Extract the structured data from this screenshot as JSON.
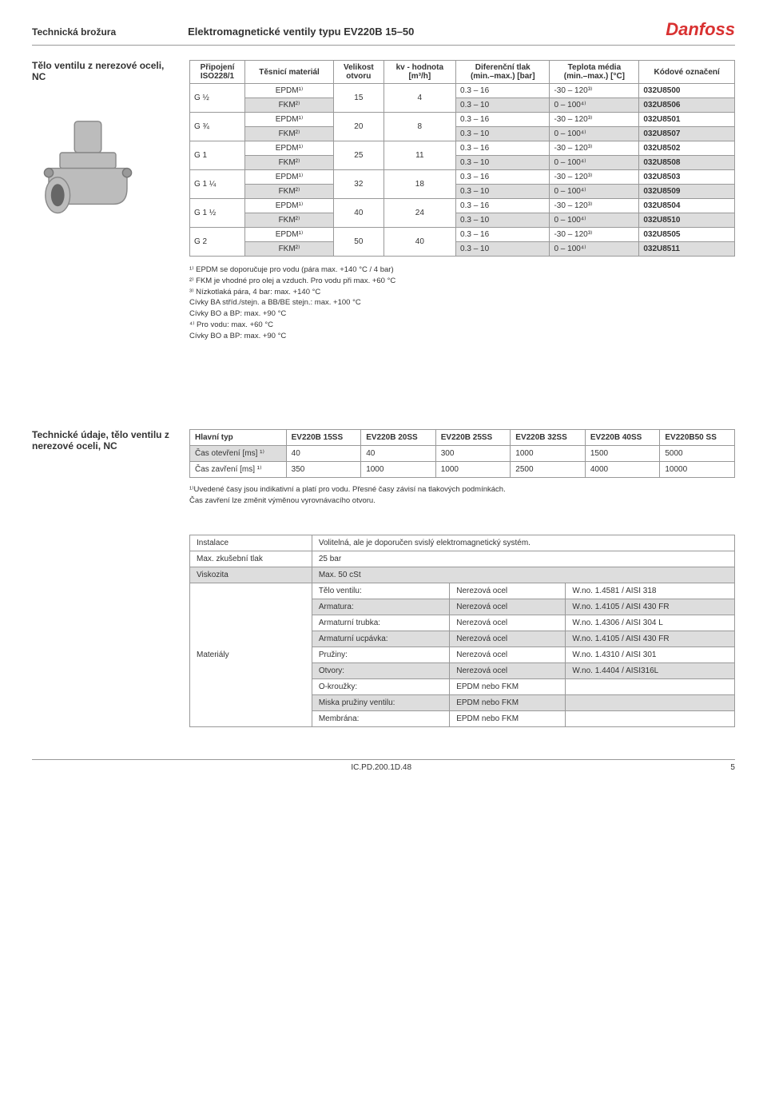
{
  "header": {
    "left": "Technická brožura",
    "center": "Elektromagnetické ventily typu EV220B 15–50",
    "logo": "Danfoss"
  },
  "section1": {
    "title": "Tělo ventilu z nerezové oceli, NC",
    "columns": {
      "c1": "Připojení\nISO228/1",
      "c2": "Těsnicí materiál",
      "c3": "Velikost\notvoru",
      "c4": "kv - hodnota\n[m³/h]",
      "c5": "Diferenční tlak\n(min.–max.) [bar]",
      "c6": "Teplota média\n(min.–max.) [°C]",
      "c7": "Kódové označení"
    },
    "rows": [
      {
        "conn": "G ½",
        "seal_e": "EPDM¹⁾",
        "seal_f": "FKM²⁾",
        "size": "15",
        "kv": "4",
        "diff_e": "0.3 – 16",
        "temp_e": "-30 – 120³⁾",
        "code_e": "032U8500",
        "diff_f": "0.3 – 10",
        "temp_f": "0 – 100⁴⁾",
        "code_f": "032U8506"
      },
      {
        "conn": "G ¾",
        "seal_e": "EPDM¹⁾",
        "seal_f": "FKM²⁾",
        "size": "20",
        "kv": "8",
        "diff_e": "0.3 – 16",
        "temp_e": "-30 – 120³⁾",
        "code_e": "032U8501",
        "diff_f": "0.3 – 10",
        "temp_f": "0 – 100⁴⁾",
        "code_f": "032U8507"
      },
      {
        "conn": "G 1",
        "seal_e": "EPDM¹⁾",
        "seal_f": "FKM²⁾",
        "size": "25",
        "kv": "11",
        "diff_e": "0.3 – 16",
        "temp_e": "-30 – 120³⁾",
        "code_e": "032U8502",
        "diff_f": "0.3 – 10",
        "temp_f": "0 – 100⁴⁾",
        "code_f": "032U8508"
      },
      {
        "conn": "G 1 ¼",
        "seal_e": "EPDM¹⁾",
        "seal_f": "FKM²⁾",
        "size": "32",
        "kv": "18",
        "diff_e": "0.3 – 16",
        "temp_e": "-30 – 120³⁾",
        "code_e": "032U8503",
        "diff_f": "0.3 – 10",
        "temp_f": "0 – 100⁴⁾",
        "code_f": "032U8509"
      },
      {
        "conn": "G 1 ½",
        "seal_e": "EPDM¹⁾",
        "seal_f": "FKM²⁾",
        "size": "40",
        "kv": "24",
        "diff_e": "0.3 – 16",
        "temp_e": "-30 – 120³⁾",
        "code_e": "032U8504",
        "diff_f": "0.3 – 10",
        "temp_f": "0 – 100⁴⁾",
        "code_f": "032U8510"
      },
      {
        "conn": "G 2",
        "seal_e": "EPDM¹⁾",
        "seal_f": "FKM²⁾",
        "size": "50",
        "kv": "40",
        "diff_e": "0.3 – 16",
        "temp_e": "-30 – 120³⁾",
        "code_e": "032U8505",
        "diff_f": "0.3 – 10",
        "temp_f": "0 – 100⁴⁾",
        "code_f": "032U8511"
      }
    ],
    "notes": {
      "n1": "¹⁾   EPDM se doporučuje pro vodu (pára max. +140 °C / 4 bar)",
      "n2": "²⁾   FKM je vhodné pro olej a vzduch. Pro vodu při max. +60 °C",
      "n3": "³⁾   Nízkotlaká pára, 4 bar: max. +140 °C",
      "n3a": "     Cívky BA stříd./stejn. a BB/BE stejn.: max. +100 °C",
      "n3b": "     Cívky BO a BP: max. +90 °C",
      "n4": "⁴⁾   Pro vodu: max. +60 °C",
      "n4a": "     Cívky BO a BP: max. +90 °C"
    }
  },
  "section2": {
    "title": "Technické údaje, tělo ventilu z nerezové oceli, NC",
    "headers": [
      "Hlavní typ",
      "EV220B 15SS",
      "EV220B 20SS",
      "EV220B 25SS",
      "EV220B 32SS",
      "EV220B 40SS",
      "EV220B50 SS"
    ],
    "row1": [
      "Čas otevření [ms] ¹⁾",
      "40",
      "40",
      "300",
      "1000",
      "1500",
      "5000"
    ],
    "row2": [
      "Čas zavření [ms] ¹⁾",
      "350",
      "1000",
      "1000",
      "2500",
      "4000",
      "10000"
    ],
    "note1": "¹⁾Uvedené časy jsou indikativní a platí pro vodu. Přesné časy závisí na tlakových podmínkách.",
    "note2": "Čas zavření lze změnit výměnou vyrovnávacího otvoru."
  },
  "section3": {
    "rows": [
      {
        "label": "Instalace",
        "value": "Volitelná, ale je doporučen svislý elektromagnetický systém.",
        "extra": ""
      },
      {
        "label": "Max. zkušební tlak",
        "value": "25 bar",
        "extra": ""
      },
      {
        "label": "Viskozita",
        "value": "Max. 50 cSt",
        "extra": ""
      }
    ],
    "materials_label": "Materiály",
    "materials": [
      {
        "part": "Tělo ventilu:",
        "mat": "Nerezová ocel",
        "std": "W.no. 1.4581 / AISI 318"
      },
      {
        "part": "Armatura:",
        "mat": "Nerezová ocel",
        "std": "W.no. 1.4105 / AISI 430 FR"
      },
      {
        "part": "Armaturní trubka:",
        "mat": "Nerezová ocel",
        "std": "W.no. 1.4306 / AISI 304 L"
      },
      {
        "part": "Armaturní ucpávka:",
        "mat": "Nerezová ocel",
        "std": "W.no. 1.4105 / AISI 430 FR"
      },
      {
        "part": "Pružiny:",
        "mat": "Nerezová ocel",
        "std": "W.no. 1.4310 / AISI 301"
      },
      {
        "part": "Otvory:",
        "mat": "Nerezová ocel",
        "std": "W.no. 1.4404 / AISI316L"
      },
      {
        "part": "O-kroužky:",
        "mat": "EPDM nebo FKM",
        "std": ""
      },
      {
        "part": "Miska pružiny ventilu:",
        "mat": "EPDM nebo FKM",
        "std": ""
      },
      {
        "part": "Membrána:",
        "mat": "EPDM nebo FKM",
        "std": ""
      }
    ]
  },
  "footer": {
    "center": "IC.PD.200.1D.48",
    "page": "5"
  }
}
